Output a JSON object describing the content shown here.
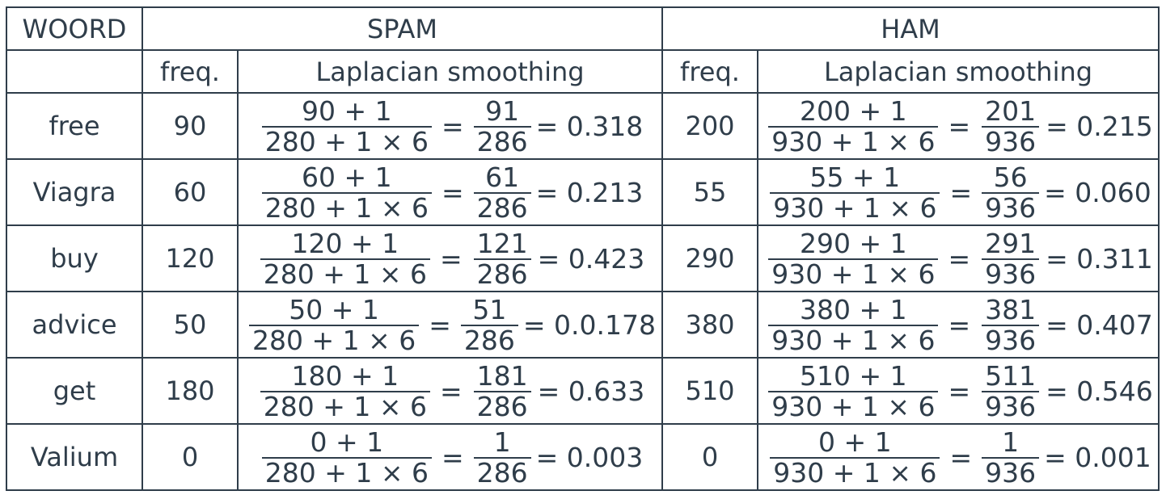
{
  "header": {
    "word": "WOORD",
    "spam": "SPAM",
    "ham": "HAM",
    "freq": "freq.",
    "laplacian": "Laplacian smoothing"
  },
  "rows": [
    {
      "word": "free",
      "spam": {
        "freq": "90",
        "num": "90 + 1",
        "den": "280 + 1 × 6",
        "rnum": "91",
        "rden": "286",
        "result": "= 0.318"
      },
      "ham": {
        "freq": "200",
        "num": "200 + 1",
        "den": "930 + 1 × 6",
        "rnum": "201",
        "rden": "936",
        "result": "= 0.215"
      }
    },
    {
      "word": "Viagra",
      "spam": {
        "freq": "60",
        "num": "60 + 1",
        "den": "280 + 1 × 6",
        "rnum": "61",
        "rden": "286",
        "result": "= 0.213"
      },
      "ham": {
        "freq": "55",
        "num": "55 + 1",
        "den": "930 + 1 × 6",
        "rnum": "56",
        "rden": "936",
        "result": "= 0.060"
      }
    },
    {
      "word": "buy",
      "spam": {
        "freq": "120",
        "num": "120 + 1",
        "den": "280 + 1 × 6",
        "rnum": "121",
        "rden": "286",
        "result": "= 0.423"
      },
      "ham": {
        "freq": "290",
        "num": "290 + 1",
        "den": "930 + 1 × 6",
        "rnum": "291",
        "rden": "936",
        "result": "= 0.311"
      }
    },
    {
      "word": "advice",
      "spam": {
        "freq": "50",
        "num": "50 + 1",
        "den": "280 + 1 × 6",
        "rnum": "51",
        "rden": "286",
        "result": "= 0.0.178"
      },
      "ham": {
        "freq": "380",
        "num": "380 + 1",
        "den": "930 + 1 × 6",
        "rnum": "381",
        "rden": "936",
        "result": "= 0.407"
      }
    },
    {
      "word": "get",
      "spam": {
        "freq": "180",
        "num": "180 + 1",
        "den": "280 + 1 × 6",
        "rnum": "181",
        "rden": "286",
        "result": "= 0.633"
      },
      "ham": {
        "freq": "510",
        "num": "510 + 1",
        "den": "930 + 1 × 6",
        "rnum": "511",
        "rden": "936",
        "result": "= 0.546"
      }
    },
    {
      "word": "Valium",
      "spam": {
        "freq": "0",
        "num": "0 + 1",
        "den": "280 + 1 × 6",
        "rnum": "1",
        "rden": "286",
        "result": "= 0.003"
      },
      "ham": {
        "freq": "0",
        "num": "0 + 1",
        "den": "930 + 1 × 6",
        "rnum": "1",
        "rden": "936",
        "result": "= 0.001"
      }
    }
  ]
}
